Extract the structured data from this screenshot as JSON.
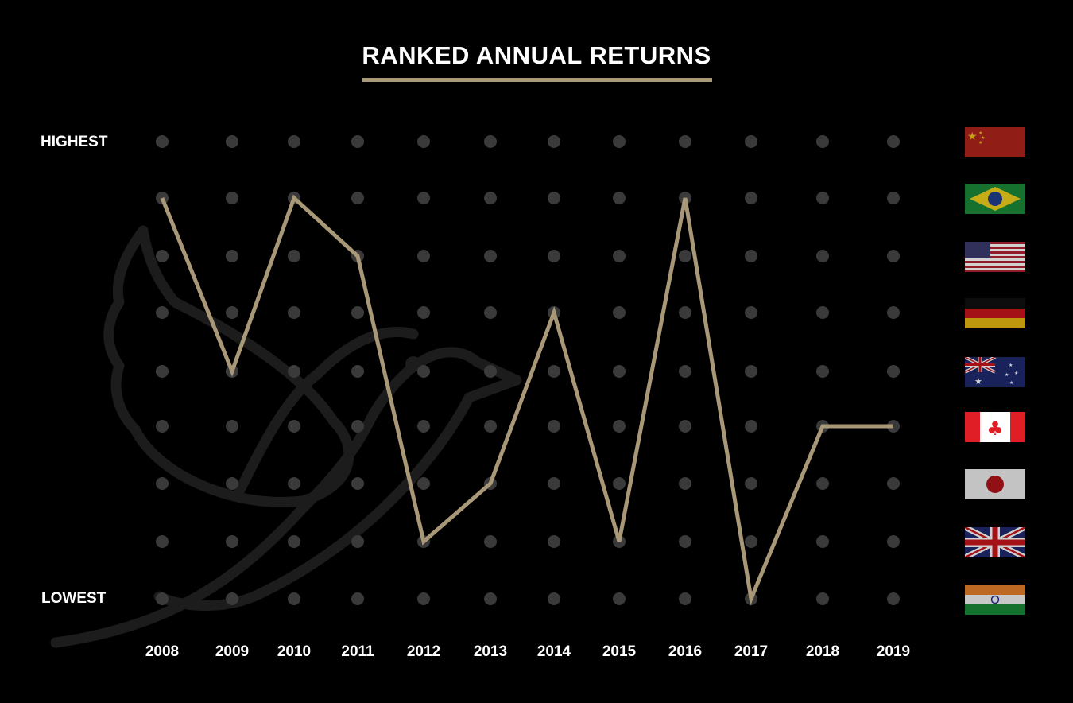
{
  "chart_data": {
    "type": "line",
    "title": "RANKED ANNUAL RETURNS",
    "y_top_label": "HIGHEST",
    "y_bottom_label": "LOWEST",
    "categories": [
      "2008",
      "2009",
      "2010",
      "2011",
      "2012",
      "2013",
      "2014",
      "2015",
      "2016",
      "2017",
      "2018",
      "2019"
    ],
    "rank_count": 9,
    "series": [
      {
        "ranks": [
          2,
          5,
          2,
          3,
          8,
          7,
          4,
          8,
          2,
          9,
          6,
          6
        ],
        "color": "#a89878"
      }
    ],
    "rank_flags": [
      "china-flag",
      "brazil-flag",
      "usa-flag",
      "germany-flag",
      "australia-flag",
      "canada-flag",
      "japan-flag",
      "uk-flag",
      "india-flag"
    ],
    "dot_color": "#3a3a3a",
    "accent_color": "#a89878",
    "grid": false,
    "legend": false
  }
}
